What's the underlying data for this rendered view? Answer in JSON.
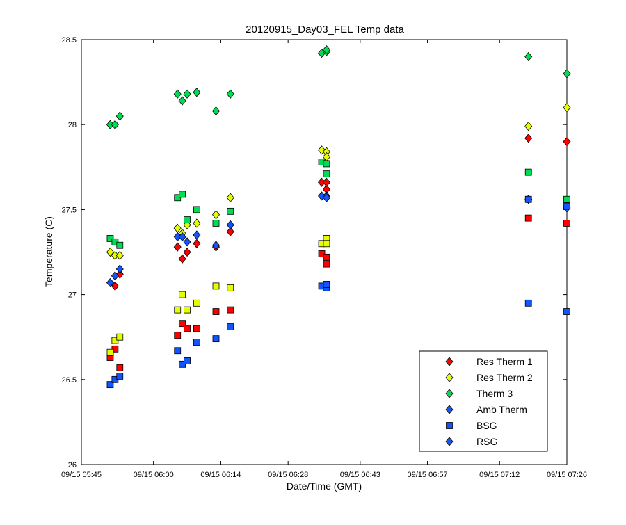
{
  "chart_data": {
    "type": "scatter",
    "title": "20120915_Day03_FEL Temp data",
    "xlabel": "Date/Time (GMT)",
    "ylabel": "Temperature (C)",
    "ylim": [
      26,
      28.5
    ],
    "xlim": [
      "09/15 05:45",
      "09/15 07:26"
    ],
    "yticks": [
      "26",
      "26.5",
      "27",
      "27.5",
      "28",
      "28.5"
    ],
    "xticks": [
      "09/15 05:45",
      "09/15 06:00",
      "09/15 06:14",
      "09/15 06:28",
      "09/15 06:43",
      "09/15 06:57",
      "09/15 07:12",
      "09/15 07:26"
    ],
    "legend_position": "bottom-right",
    "series": [
      {
        "name": "Res Therm 1",
        "marker": "diamond",
        "color": "#ff0000",
        "points": [
          [
            "09/15 05:52",
            27.05
          ],
          [
            "09/15 05:53",
            27.12
          ],
          [
            "09/15 06:05",
            27.28
          ],
          [
            "09/15 06:06",
            27.21
          ],
          [
            "09/15 06:07",
            27.25
          ],
          [
            "09/15 06:09",
            27.3
          ],
          [
            "09/15 06:13",
            27.28
          ],
          [
            "09/15 06:16",
            27.37
          ],
          [
            "09/15 06:35",
            27.66
          ],
          [
            "09/15 06:36",
            27.62
          ],
          [
            "09/15 06:36",
            27.66
          ],
          [
            "09/15 07:18",
            27.92
          ],
          [
            "09/15 07:26",
            27.9
          ]
        ]
      },
      {
        "name": "Res Therm 2",
        "marker": "diamond",
        "color": "#e5ff00",
        "points": [
          [
            "09/15 05:51",
            27.25
          ],
          [
            "09/15 05:52",
            27.23
          ],
          [
            "09/15 05:53",
            27.23
          ],
          [
            "09/15 06:05",
            27.39
          ],
          [
            "09/15 06:06",
            27.36
          ],
          [
            "09/15 06:07",
            27.41
          ],
          [
            "09/15 06:09",
            27.42
          ],
          [
            "09/15 06:13",
            27.47
          ],
          [
            "09/15 06:16",
            27.57
          ],
          [
            "09/15 06:35",
            27.85
          ],
          [
            "09/15 06:36",
            27.84
          ],
          [
            "09/15 06:36",
            27.81
          ],
          [
            "09/15 07:18",
            27.99
          ],
          [
            "09/15 07:26",
            28.1
          ]
        ]
      },
      {
        "name": "Therm 3",
        "marker": "diamond",
        "color": "#00dd55",
        "points": [
          [
            "09/15 05:51",
            28.0
          ],
          [
            "09/15 05:52",
            28.0
          ],
          [
            "09/15 05:53",
            28.05
          ],
          [
            "09/15 06:05",
            28.18
          ],
          [
            "09/15 06:06",
            28.14
          ],
          [
            "09/15 06:07",
            28.18
          ],
          [
            "09/15 06:09",
            28.19
          ],
          [
            "09/15 06:13",
            28.08
          ],
          [
            "09/15 06:16",
            28.18
          ],
          [
            "09/15 06:35",
            28.42
          ],
          [
            "09/15 06:36",
            28.43
          ],
          [
            "09/15 06:36",
            28.44
          ],
          [
            "09/15 07:18",
            28.4
          ],
          [
            "09/15 07:26",
            28.3
          ]
        ]
      },
      {
        "name": "Amb Therm",
        "marker": "diamond",
        "color": "#1155ff",
        "points": [
          [
            "09/15 05:51",
            27.07
          ],
          [
            "09/15 05:52",
            27.11
          ],
          [
            "09/15 05:53",
            27.15
          ],
          [
            "09/15 06:05",
            27.34
          ],
          [
            "09/15 06:06",
            27.34
          ],
          [
            "09/15 06:07",
            27.31
          ],
          [
            "09/15 06:09",
            27.35
          ],
          [
            "09/15 06:13",
            27.29
          ],
          [
            "09/15 06:16",
            27.41
          ],
          [
            "09/15 06:35",
            27.58
          ],
          [
            "09/15 06:36",
            27.58
          ],
          [
            "09/15 06:36",
            27.57
          ],
          [
            "09/15 07:18",
            27.56
          ],
          [
            "09/15 07:26",
            27.51
          ]
        ]
      },
      {
        "name": "BSG",
        "marker": "square",
        "color": "#1155ff",
        "points": [
          [
            "09/15 05:51",
            26.47
          ],
          [
            "09/15 05:52",
            26.5
          ],
          [
            "09/15 05:53",
            26.52
          ],
          [
            "09/15 06:05",
            26.67
          ],
          [
            "09/15 06:06",
            26.59
          ],
          [
            "09/15 06:07",
            26.61
          ],
          [
            "09/15 06:09",
            26.72
          ],
          [
            "09/15 06:13",
            26.74
          ],
          [
            "09/15 06:16",
            26.81
          ],
          [
            "09/15 06:35",
            27.05
          ],
          [
            "09/15 06:36",
            27.04
          ],
          [
            "09/15 06:36",
            27.06
          ],
          [
            "09/15 07:18",
            26.95
          ],
          [
            "09/15 07:26",
            26.9
          ]
        ]
      },
      {
        "name": "RSG",
        "marker": "diamond",
        "color": "#1155ff",
        "points": []
      },
      {
        "name": "",
        "marker": "square",
        "color": "#ff0000",
        "points": [
          [
            "09/15 05:51",
            26.63
          ],
          [
            "09/15 05:52",
            26.68
          ],
          [
            "09/15 05:53",
            26.57
          ],
          [
            "09/15 06:05",
            26.76
          ],
          [
            "09/15 06:06",
            26.83
          ],
          [
            "09/15 06:07",
            26.8
          ],
          [
            "09/15 06:09",
            26.8
          ],
          [
            "09/15 06:13",
            26.9
          ],
          [
            "09/15 06:16",
            26.91
          ],
          [
            "09/15 06:35",
            27.24
          ],
          [
            "09/15 06:36",
            27.18
          ],
          [
            "09/15 06:36",
            27.22
          ],
          [
            "09/15 07:18",
            27.45
          ],
          [
            "09/15 07:26",
            27.42
          ]
        ]
      },
      {
        "name": "",
        "marker": "square",
        "color": "#e5ff00",
        "points": [
          [
            "09/15 05:51",
            26.66
          ],
          [
            "09/15 05:52",
            26.73
          ],
          [
            "09/15 05:53",
            26.75
          ],
          [
            "09/15 06:05",
            26.91
          ],
          [
            "09/15 06:06",
            27.0
          ],
          [
            "09/15 06:07",
            26.91
          ],
          [
            "09/15 06:09",
            26.95
          ],
          [
            "09/15 06:13",
            27.05
          ],
          [
            "09/15 06:16",
            27.04
          ],
          [
            "09/15 06:35",
            27.3
          ],
          [
            "09/15 06:36",
            27.33
          ],
          [
            "09/15 06:36",
            27.3
          ]
        ]
      },
      {
        "name": "",
        "marker": "square",
        "color": "#00dd55",
        "points": [
          [
            "09/15 05:51",
            27.33
          ],
          [
            "09/15 05:52",
            27.31
          ],
          [
            "09/15 05:53",
            27.29
          ],
          [
            "09/15 06:05",
            27.57
          ],
          [
            "09/15 06:06",
            27.59
          ],
          [
            "09/15 06:07",
            27.44
          ],
          [
            "09/15 06:09",
            27.5
          ],
          [
            "09/15 06:13",
            27.42
          ],
          [
            "09/15 06:16",
            27.49
          ],
          [
            "09/15 06:35",
            27.78
          ],
          [
            "09/15 06:36",
            27.71
          ],
          [
            "09/15 06:36",
            27.77
          ],
          [
            "09/15 07:18",
            27.72
          ],
          [
            "09/15 07:26",
            27.56
          ]
        ]
      },
      {
        "name": "",
        "marker": "square",
        "color": "#1155ff",
        "points": [
          [
            "09/15 07:18",
            27.56
          ],
          [
            "09/15 07:26",
            27.52
          ]
        ]
      }
    ]
  }
}
